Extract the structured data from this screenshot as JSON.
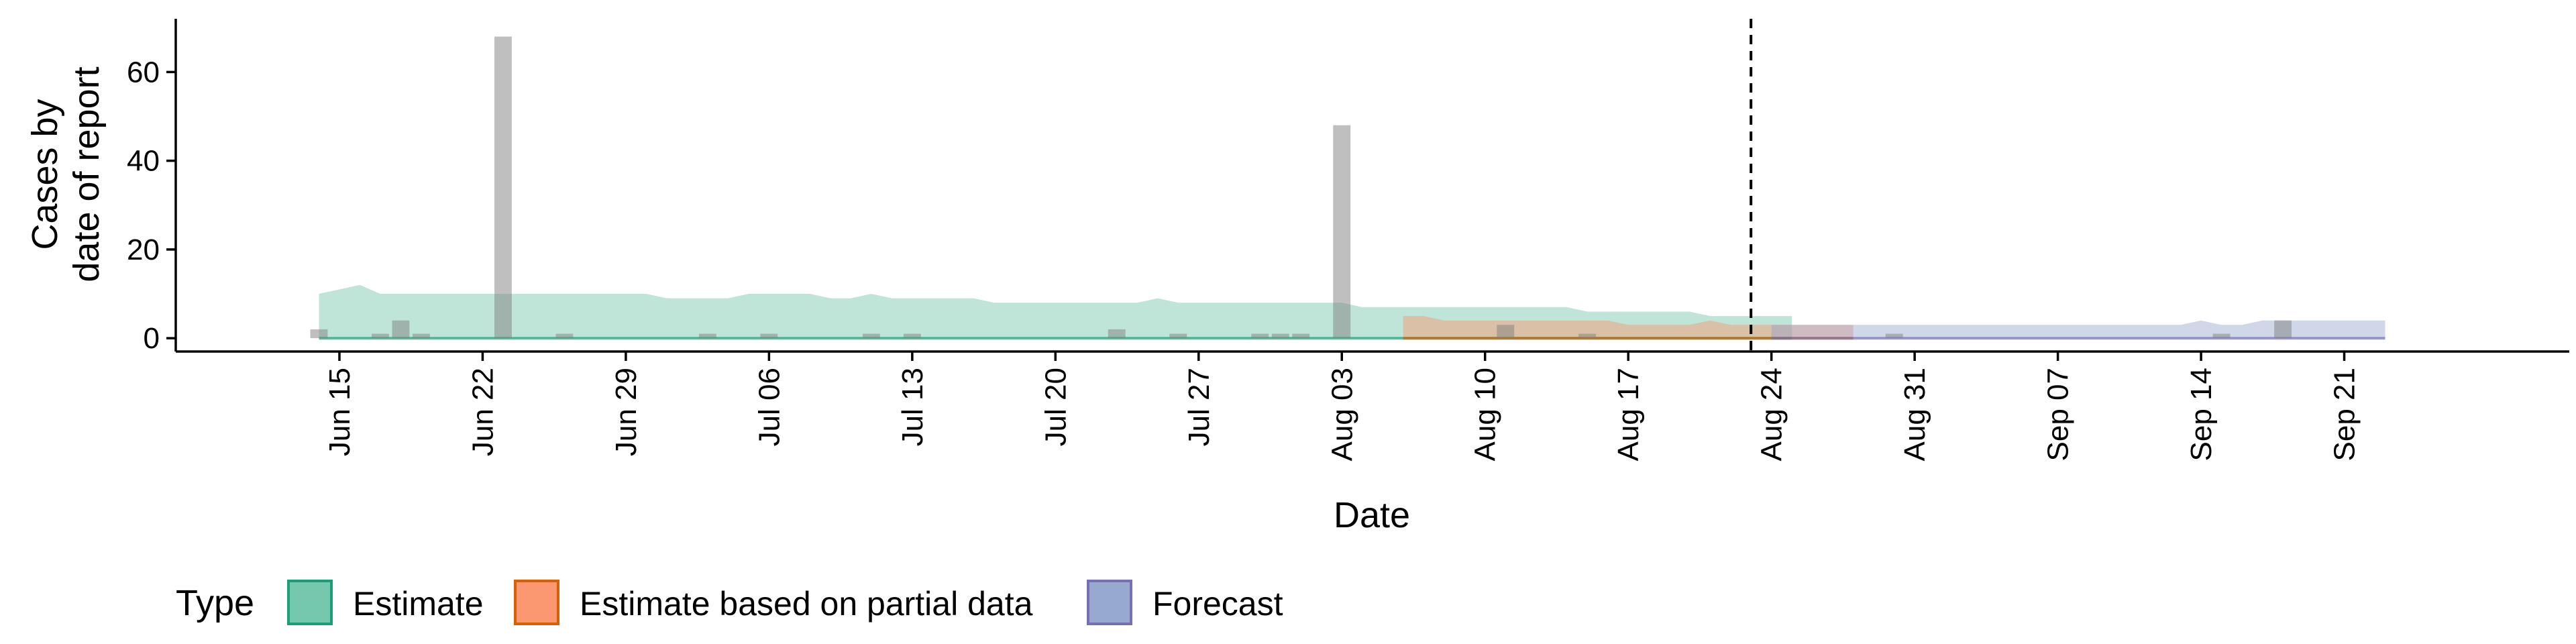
{
  "chart_data": {
    "type": "area",
    "ylabel": [
      "Cases by",
      "date of report"
    ],
    "xlabel": "Date",
    "ylim": [
      -3,
      72
    ],
    "y_ticks": [
      0,
      20,
      40,
      60
    ],
    "x_range": [
      "2020-06-07",
      "2020-10-02"
    ],
    "x_ticks": [
      {
        "date": "2020-06-15",
        "label": "Jun 15"
      },
      {
        "date": "2020-06-22",
        "label": "Jun 22"
      },
      {
        "date": "2020-06-29",
        "label": "Jun 29"
      },
      {
        "date": "2020-07-06",
        "label": "Jul 06"
      },
      {
        "date": "2020-07-13",
        "label": "Jul 13"
      },
      {
        "date": "2020-07-20",
        "label": "Jul 20"
      },
      {
        "date": "2020-07-27",
        "label": "Jul 27"
      },
      {
        "date": "2020-08-03",
        "label": "Aug 03"
      },
      {
        "date": "2020-08-10",
        "label": "Aug 10"
      },
      {
        "date": "2020-08-17",
        "label": "Aug 17"
      },
      {
        "date": "2020-08-24",
        "label": "Aug 24"
      },
      {
        "date": "2020-08-31",
        "label": "Aug 31"
      },
      {
        "date": "2020-09-07",
        "label": "Sep 07"
      },
      {
        "date": "2020-09-14",
        "label": "Sep 14"
      },
      {
        "date": "2020-09-21",
        "label": "Sep 21"
      }
    ],
    "vline_date": "2020-08-23",
    "grid": false,
    "legend_position": "bottom",
    "legend_title": "Type",
    "series": [
      {
        "name": "Estimate",
        "color": "#1b9e77",
        "fill": "#66c2a5",
        "start": "2020-06-14",
        "upper": [
          10,
          11,
          12,
          10,
          10,
          10,
          10,
          10,
          10,
          10,
          10,
          10,
          10,
          10,
          10,
          10,
          10,
          9,
          9,
          9,
          9,
          10,
          10,
          10,
          10,
          9,
          9,
          10,
          9,
          9,
          9,
          9,
          9,
          8,
          8,
          8,
          8,
          8,
          8,
          8,
          8,
          9,
          8,
          8,
          8,
          8,
          8,
          8,
          8,
          8,
          8,
          7,
          7,
          7,
          7,
          7,
          7,
          7,
          7,
          7,
          7,
          7,
          6,
          6,
          6,
          6,
          6,
          6,
          5,
          5,
          5,
          5,
          5
        ],
        "lower": [
          0,
          0,
          0,
          0,
          0,
          0,
          0,
          0,
          0,
          0,
          0,
          0,
          0,
          0,
          0,
          0,
          0,
          0,
          0,
          0,
          0,
          0,
          0,
          0,
          0,
          0,
          0,
          0,
          0,
          0,
          0,
          0,
          0,
          0,
          0,
          0,
          0,
          0,
          0,
          0,
          0,
          0,
          0,
          0,
          0,
          0,
          0,
          0,
          0,
          0,
          0,
          0,
          0,
          0,
          0,
          0,
          0,
          0,
          0,
          0,
          0,
          0,
          0,
          0,
          0,
          0,
          0,
          0,
          0,
          0,
          0,
          0,
          0
        ]
      },
      {
        "name": "Estimate based on partial data",
        "color": "#d95f02",
        "fill": "#fc8d62",
        "start": "2020-08-06",
        "upper": [
          5,
          5,
          4,
          4,
          4,
          4,
          4,
          4,
          4,
          4,
          4,
          3,
          3,
          3,
          3,
          4,
          3,
          3,
          3,
          3,
          3,
          3,
          3
        ],
        "lower": [
          0,
          0,
          0,
          0,
          0,
          0,
          0,
          0,
          0,
          0,
          0,
          0,
          0,
          0,
          0,
          0,
          0,
          0,
          0,
          0,
          0,
          0,
          0
        ]
      },
      {
        "name": "Forecast",
        "color": "#7570b3",
        "fill": "#8da0cb",
        "start": "2020-08-24",
        "upper": [
          3,
          3,
          3,
          3,
          3,
          3,
          3,
          3,
          3,
          3,
          3,
          3,
          3,
          3,
          3,
          3,
          3,
          3,
          3,
          3,
          3,
          4,
          3,
          3,
          4,
          4,
          4,
          4,
          4,
          4,
          4
        ],
        "lower": [
          0,
          0,
          0,
          0,
          0,
          0,
          0,
          0,
          0,
          0,
          0,
          0,
          0,
          0,
          0,
          0,
          0,
          0,
          0,
          0,
          0,
          0,
          0,
          0,
          0,
          0,
          0,
          0,
          0,
          0,
          0
        ]
      }
    ],
    "reported_cases": {
      "color": "#808080",
      "start": "2020-06-14",
      "values": [
        2,
        0,
        0,
        1,
        4,
        1,
        0,
        0,
        0,
        68,
        0,
        0,
        1,
        0,
        0,
        0,
        0,
        0,
        0,
        1,
        0,
        0,
        1,
        0,
        0,
        0,
        0,
        1,
        0,
        1,
        0,
        0,
        0,
        0,
        0,
        0,
        0,
        0,
        0,
        2,
        0,
        0,
        1,
        0,
        0,
        0,
        1,
        1,
        1,
        0,
        48,
        0,
        0,
        0,
        0,
        0,
        0,
        0,
        3,
        0,
        0,
        0,
        1,
        0,
        0,
        0,
        0,
        0,
        0,
        0,
        0,
        0,
        0,
        0,
        0,
        0,
        0,
        1,
        0,
        0,
        0,
        0,
        0,
        0,
        0,
        0,
        0,
        0,
        0,
        0,
        0,
        0,
        0,
        1,
        0,
        0,
        4,
        0
      ]
    }
  }
}
